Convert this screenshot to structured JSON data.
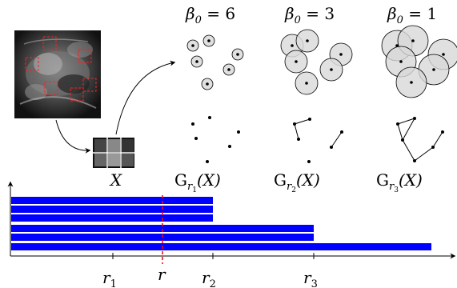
{
  "labels": {
    "beta": "β",
    "beta_sub": "0",
    "eq": " = ",
    "X": "X",
    "G": "G",
    "r": "r",
    "r_sub_1": "1",
    "r_sub_2": "2",
    "r_sub_3": "3"
  },
  "panels": [
    {
      "betti": "6",
      "radius_index": "1",
      "arg": "(X)"
    },
    {
      "betti": "3",
      "radius_index": "2",
      "arg": "(X)"
    },
    {
      "betti": "1",
      "radius_index": "3",
      "arg": "(X)"
    }
  ],
  "barcode": {
    "color": "#0000ff",
    "threshold_color": "#ff0000",
    "bars": [
      {
        "end": "r2"
      },
      {
        "end": "r2"
      },
      {
        "end": "r2"
      },
      {
        "end": "r3"
      },
      {
        "end": "r3"
      },
      {
        "end": "infinity"
      }
    ]
  }
}
